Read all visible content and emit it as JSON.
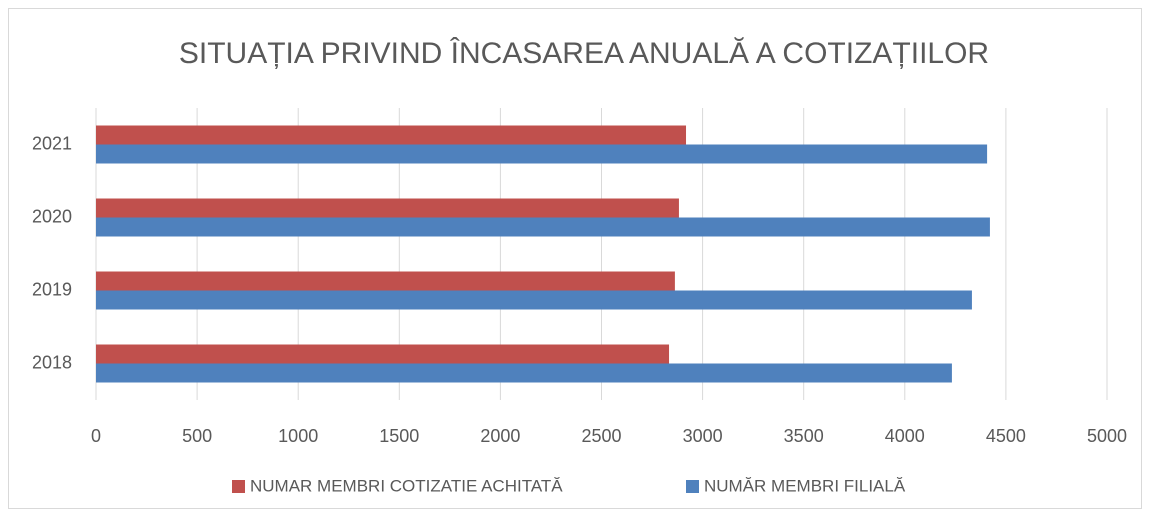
{
  "chart_data": {
    "type": "hbar",
    "title": "SITUAȚIA PRIVIND ÎNCASAREA ANUALĂ A COTIZAȚIILOR",
    "categories": [
      "2018",
      "2019",
      "2020",
      "2021"
    ],
    "series": [
      {
        "name": "NUMAR MEMBRI COTIZATIE ACHITATĂ",
        "color": "#c0504d",
        "values": [
          2834,
          2863,
          2883,
          2918
        ]
      },
      {
        "name": "NUMĂR MEMBRI FILIALĂ",
        "color": "#4f81bd",
        "values": [
          4233,
          4332,
          4421,
          4407
        ]
      }
    ],
    "xlim": [
      0,
      5000
    ],
    "xticks": [
      0,
      500,
      1000,
      1500,
      2000,
      2500,
      3000,
      3500,
      4000,
      4500,
      5000
    ],
    "grid": true,
    "legend": "bottom"
  }
}
